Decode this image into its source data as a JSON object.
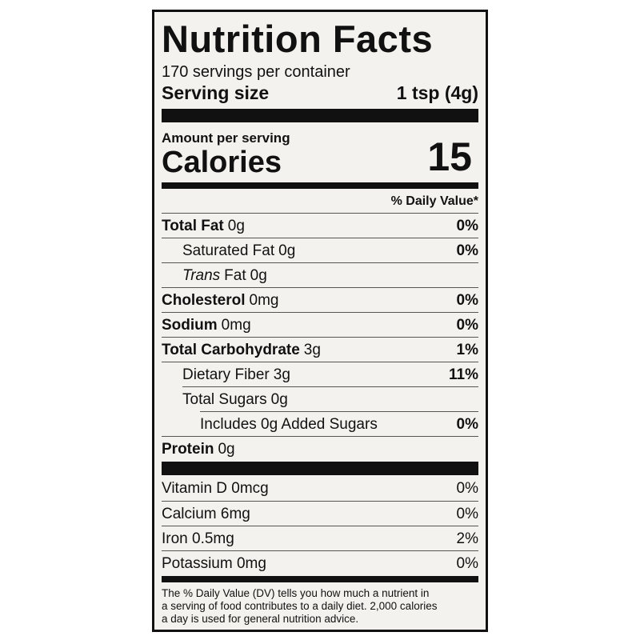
{
  "header": {
    "title": "Nutrition Facts",
    "servings": "170 servings per container",
    "serving_size_label": "Serving size",
    "serving_size": "1 tsp (4g)"
  },
  "calories": {
    "amount_per_serving": "Amount per serving",
    "label": "Calories",
    "value": 15
  },
  "daily_value_heading": "% Daily Value*",
  "nutrients": [
    {
      "name": "Total Fat",
      "amount": "0g",
      "dv": "0%"
    },
    {
      "name": "Saturated Fat",
      "amount": "0g",
      "dv": "0%"
    },
    {
      "prefix": "Trans",
      "name": "Fat",
      "amount": "0g"
    },
    {
      "name": "Cholesterol",
      "amount": "0mg",
      "dv": "0%"
    },
    {
      "name": "Sodium",
      "amount": "0mg",
      "dv": "0%"
    },
    {
      "name": "Total Carbohydrate",
      "amount": "3g",
      "dv": "1%"
    },
    {
      "name": "Dietary Fiber",
      "amount": "3g",
      "dv": "11%"
    },
    {
      "name": "Total Sugars",
      "amount": "0g"
    },
    {
      "name": "Includes 0g Added Sugars",
      "dv": "0%"
    },
    {
      "name": "Protein",
      "amount": "0g"
    }
  ],
  "vitamins": [
    {
      "name": "Vitamin D 0mcg",
      "dv": "0%"
    },
    {
      "name": "Calcium 6mg",
      "dv": "0%"
    },
    {
      "name": "Iron 0.5mg",
      "dv": "2%"
    },
    {
      "name": "Potassium 0mg",
      "dv": "0%"
    }
  ],
  "footnote": [
    "The % Daily Value (DV) tells you how much a nutrient in",
    "a serving of food contributes to a daily diet. 2,000 calories",
    "a day is used for general nutrition advice."
  ]
}
